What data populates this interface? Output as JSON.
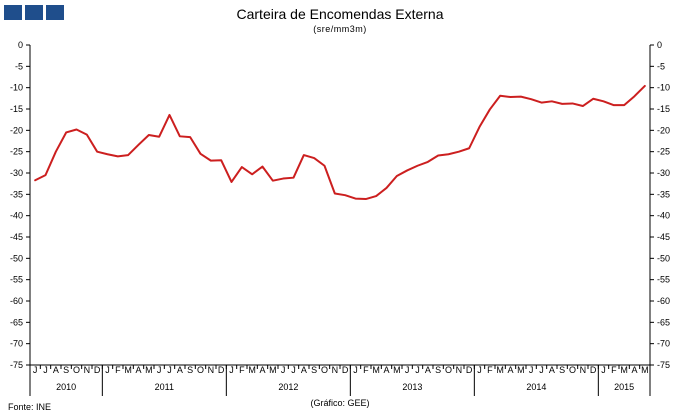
{
  "title": "Carteira de Encomendas Externa",
  "subtitle": "(sre/mm3m)",
  "source": "Fonte:  INE",
  "credit": "(Gráfico:  GEE)",
  "chart_data": {
    "type": "line",
    "title": "Carteira de Encomendas Externa",
    "subtitle": "(sre/mm3m)",
    "ylim": [
      -75,
      0
    ],
    "yticks": [
      0,
      -5,
      -10,
      -15,
      -20,
      -25,
      -30,
      -35,
      -40,
      -45,
      -50,
      -55,
      -60,
      -65,
      -70,
      -75
    ],
    "ytick_labels": [
      "0",
      "-5",
      "-10",
      "-15",
      "-20",
      "-25",
      "-30",
      "-35",
      "-40",
      "-45",
      "-50",
      "-55",
      "-60",
      "-65",
      "-70",
      "-75"
    ],
    "grid": false,
    "line_color": "#cc1f1f",
    "month_labels": [
      "J",
      "J",
      "A",
      "S",
      "O",
      "N",
      "D",
      "J",
      "F",
      "M",
      "A",
      "M",
      "J",
      "J",
      "A",
      "S",
      "O",
      "N",
      "D",
      "J",
      "F",
      "M",
      "A",
      "M",
      "J",
      "J",
      "A",
      "S",
      "O",
      "N",
      "D",
      "J",
      "F",
      "M",
      "A",
      "M",
      "J",
      "J",
      "A",
      "S",
      "O",
      "N",
      "D",
      "J",
      "F",
      "M",
      "A",
      "M",
      "J",
      "J",
      "A",
      "S",
      "O",
      "N",
      "D",
      "J",
      "F",
      "M",
      "A",
      "M"
    ],
    "years": [
      {
        "label": "2010",
        "start": 0,
        "count": 7
      },
      {
        "label": "2011",
        "start": 7,
        "count": 12
      },
      {
        "label": "2012",
        "start": 19,
        "count": 12
      },
      {
        "label": "2013",
        "start": 31,
        "count": 12
      },
      {
        "label": "2014",
        "start": 43,
        "count": 12
      },
      {
        "label": "2015",
        "start": 55,
        "count": 5
      }
    ],
    "series": [
      {
        "values": [
          -31.7,
          -30.5,
          -25.0,
          -20.5,
          -19.8,
          -21.0,
          -25.0,
          -25.6,
          -26.1,
          -25.8,
          -23.4,
          -21.1,
          -21.5,
          -16.4,
          -21.4,
          -21.6,
          -25.5,
          -27.1,
          -27.0,
          -32.1,
          -28.6,
          -30.3,
          -28.5,
          -31.8,
          -31.3,
          -31.1,
          -25.8,
          -26.5,
          -28.3,
          -34.8,
          -35.2,
          -36.0,
          -36.1,
          -35.4,
          -33.5,
          -30.7,
          -29.4,
          -28.3,
          -27.4,
          -25.9,
          -25.6,
          -25.0,
          -24.2,
          -19.2,
          -15.1,
          -11.9,
          -12.2,
          -12.1,
          -12.7,
          -13.5,
          -13.2,
          -13.8,
          -13.7,
          -14.3,
          -12.6,
          -13.2,
          -14.1,
          -14.1,
          -12.0,
          -9.6
        ]
      }
    ]
  }
}
